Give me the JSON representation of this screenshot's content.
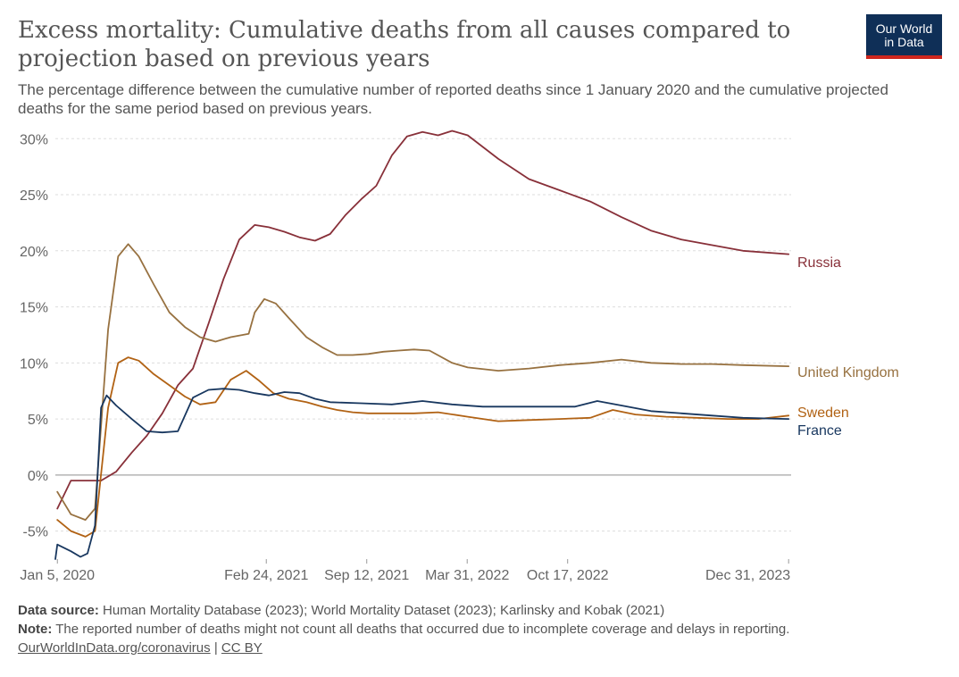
{
  "title": "Excess mortality: Cumulative deaths from all causes compared to projection based on previous years",
  "subtitle": "The percentage difference between the cumulative number of reported deaths since 1 January 2020 and the cumulative projected deaths for the same period based on previous years.",
  "logo": {
    "line1": "Our World",
    "line2": "in Data",
    "bg_color": "#0f2f57",
    "accent_color": "#ce261e"
  },
  "footer": {
    "source_label": "Data source:",
    "source_text": "Human Mortality Database (2023); World Mortality Dataset (2023); Karlinsky and Kobak (2021)",
    "note_label": "Note:",
    "note_text": "The reported number of deaths might not count all deaths that occurred due to incomplete coverage and delays in reporting.",
    "link_text": "OurWorldInData.org/coronavirus",
    "separator": "|",
    "license_text": "CC BY"
  },
  "chart_data": {
    "type": "line",
    "grid": true,
    "legend": "right, labels at line ends",
    "ylim": [
      -7.5,
      30.5
    ],
    "xlim": [
      "2020-01-01",
      "2024-01-05"
    ],
    "yticks": [
      -5,
      0,
      5,
      10,
      15,
      20,
      25,
      30
    ],
    "ytick_labels": [
      "-5%",
      "0%",
      "5%",
      "10%",
      "15%",
      "20%",
      "25%",
      "30%"
    ],
    "xticks": [
      "2020-01-05",
      "2021-02-24",
      "2021-09-12",
      "2022-03-31",
      "2022-10-17",
      "2023-12-31"
    ],
    "xtick_labels": [
      "Jan 5, 2020",
      "Feb 24, 2021",
      "Sep 12, 2021",
      "Mar 31, 2022",
      "Oct 17, 2022",
      "Dec 31, 2023"
    ],
    "series": [
      {
        "name": "Russia",
        "color": "#883039",
        "x": [
          "2020-01-05",
          "2020-02-01",
          "2020-03-01",
          "2020-04-01",
          "2020-05-01",
          "2020-06-01",
          "2020-07-01",
          "2020-08-01",
          "2020-09-01",
          "2020-10-01",
          "2020-11-01",
          "2020-12-01",
          "2021-01-01",
          "2021-02-01",
          "2021-03-01",
          "2021-04-01",
          "2021-05-01",
          "2021-06-01",
          "2021-07-01",
          "2021-08-01",
          "2021-09-01",
          "2021-10-01",
          "2021-11-01",
          "2021-12-01",
          "2022-01-01",
          "2022-02-01",
          "2022-03-01",
          "2022-04-01",
          "2022-06-01",
          "2022-08-01",
          "2022-10-01",
          "2022-12-01",
          "2023-02-01",
          "2023-04-01",
          "2023-06-01",
          "2023-08-01",
          "2023-10-01",
          "2023-12-31"
        ],
        "values": [
          -3.0,
          -0.5,
          -0.5,
          -0.5,
          0.3,
          2.0,
          3.5,
          5.5,
          8.0,
          9.5,
          13.5,
          17.5,
          21.0,
          22.3,
          22.1,
          21.7,
          21.2,
          20.9,
          21.5,
          23.2,
          24.6,
          25.8,
          28.5,
          30.2,
          30.6,
          30.3,
          30.7,
          30.3,
          28.2,
          26.4,
          25.4,
          24.4,
          23.0,
          21.8,
          21.0,
          20.5,
          20.0,
          19.7
        ]
      },
      {
        "name": "United Kingdom",
        "color": "#977140",
        "x": [
          "2020-01-05",
          "2020-02-01",
          "2020-03-01",
          "2020-03-20",
          "2020-04-15",
          "2020-05-05",
          "2020-05-25",
          "2020-06-15",
          "2020-07-15",
          "2020-08-15",
          "2020-09-15",
          "2020-10-15",
          "2020-11-15",
          "2020-12-15",
          "2021-01-20",
          "2021-02-01",
          "2021-02-20",
          "2021-03-15",
          "2021-04-10",
          "2021-05-15",
          "2021-06-15",
          "2021-07-15",
          "2021-08-15",
          "2021-09-15",
          "2021-10-15",
          "2021-11-15",
          "2021-12-15",
          "2022-01-15",
          "2022-03-01",
          "2022-04-01",
          "2022-06-01",
          "2022-08-01",
          "2022-10-01",
          "2022-12-01",
          "2023-02-01",
          "2023-04-01",
          "2023-06-01",
          "2023-08-01",
          "2023-10-01",
          "2023-12-31"
        ],
        "values": [
          -1.5,
          -3.5,
          -4.0,
          -3.0,
          13.0,
          19.5,
          20.6,
          19.5,
          17.0,
          14.5,
          13.2,
          12.3,
          11.9,
          12.3,
          12.6,
          14.5,
          15.7,
          15.3,
          14.0,
          12.3,
          11.4,
          10.7,
          10.7,
          10.8,
          11.0,
          11.1,
          11.2,
          11.1,
          10.0,
          9.6,
          9.3,
          9.5,
          9.8,
          10.0,
          10.3,
          10.0,
          9.9,
          9.9,
          9.8,
          9.7
        ]
      },
      {
        "name": "Sweden",
        "color": "#b16214",
        "x": [
          "2020-01-05",
          "2020-02-01",
          "2020-03-01",
          "2020-03-20",
          "2020-04-15",
          "2020-05-05",
          "2020-05-25",
          "2020-06-15",
          "2020-07-15",
          "2020-08-15",
          "2020-09-15",
          "2020-10-15",
          "2020-11-15",
          "2020-12-15",
          "2021-01-15",
          "2021-02-10",
          "2021-03-10",
          "2021-04-10",
          "2021-05-15",
          "2021-06-15",
          "2021-07-15",
          "2021-08-15",
          "2021-09-15",
          "2021-10-15",
          "2021-11-15",
          "2021-12-15",
          "2022-02-01",
          "2022-04-01",
          "2022-06-01",
          "2022-08-01",
          "2022-10-01",
          "2022-12-01",
          "2023-01-15",
          "2023-03-01",
          "2023-05-01",
          "2023-07-01",
          "2023-09-01",
          "2023-11-01",
          "2023-12-31"
        ],
        "values": [
          -4.0,
          -5.0,
          -5.5,
          -5.0,
          6.0,
          10.0,
          10.5,
          10.2,
          9.0,
          8.0,
          7.0,
          6.3,
          6.5,
          8.5,
          9.3,
          8.4,
          7.3,
          6.8,
          6.5,
          6.1,
          5.8,
          5.6,
          5.5,
          5.5,
          5.5,
          5.5,
          5.6,
          5.2,
          4.8,
          4.9,
          5.0,
          5.1,
          5.8,
          5.4,
          5.2,
          5.1,
          5.0,
          5.0,
          5.3
        ]
      },
      {
        "name": "France",
        "color": "#18375f",
        "x": [
          "2020-01-01",
          "2020-01-05",
          "2020-02-01",
          "2020-02-20",
          "2020-03-05",
          "2020-03-20",
          "2020-04-01",
          "2020-04-12",
          "2020-05-01",
          "2020-06-01",
          "2020-07-01",
          "2020-08-01",
          "2020-09-01",
          "2020-10-01",
          "2020-11-01",
          "2020-12-01",
          "2021-01-01",
          "2021-02-01",
          "2021-03-01",
          "2021-04-01",
          "2021-05-01",
          "2021-06-01",
          "2021-07-01",
          "2021-09-01",
          "2021-11-01",
          "2022-01-01",
          "2022-03-01",
          "2022-05-01",
          "2022-07-01",
          "2022-09-01",
          "2022-11-01",
          "2022-12-15",
          "2023-02-01",
          "2023-04-01",
          "2023-06-01",
          "2023-08-01",
          "2023-10-01",
          "2023-12-31"
        ],
        "values": [
          -7.5,
          -6.2,
          -6.8,
          -7.3,
          -7.0,
          -4.5,
          6.0,
          7.1,
          6.2,
          5.0,
          3.9,
          3.8,
          3.9,
          6.9,
          7.6,
          7.7,
          7.6,
          7.3,
          7.1,
          7.4,
          7.3,
          6.8,
          6.5,
          6.4,
          6.3,
          6.6,
          6.3,
          6.1,
          6.1,
          6.1,
          6.1,
          6.6,
          6.2,
          5.7,
          5.5,
          5.3,
          5.1,
          5.0
        ]
      }
    ]
  }
}
